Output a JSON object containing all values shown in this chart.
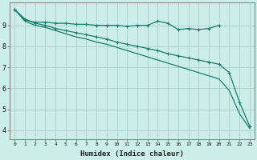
{
  "xlabel": "Humidex (Indice chaleur)",
  "bg_color": "#cceee8",
  "grid_color": "#aad4ce",
  "line_color": "#1a7a6e",
  "xlim": [
    -0.5,
    23.5
  ],
  "ylim": [
    3.6,
    10.1
  ],
  "yticks": [
    4,
    5,
    6,
    7,
    8,
    9
  ],
  "xticks": [
    0,
    1,
    2,
    3,
    4,
    5,
    6,
    7,
    8,
    9,
    10,
    11,
    12,
    13,
    14,
    15,
    16,
    17,
    18,
    19,
    20,
    21,
    22,
    23
  ],
  "line1_x": [
    0,
    1,
    2,
    3,
    4,
    5,
    6,
    7,
    8,
    9,
    10,
    11,
    12,
    13,
    14,
    15,
    16,
    17,
    18,
    19,
    20
  ],
  "line1_y": [
    9.75,
    9.25,
    9.15,
    9.15,
    9.1,
    9.1,
    9.05,
    9.05,
    9.0,
    9.0,
    9.0,
    8.95,
    9.0,
    9.0,
    9.2,
    9.1,
    8.8,
    8.85,
    8.8,
    8.85,
    9.0
  ],
  "line2_x": [
    0,
    1,
    2,
    3,
    4,
    5,
    6,
    7,
    8,
    9,
    10,
    11,
    12,
    13,
    14,
    15,
    16,
    17,
    18,
    19,
    20,
    21,
    22,
    23
  ],
  "line2_y": [
    9.75,
    9.3,
    9.1,
    9.0,
    8.85,
    8.75,
    8.65,
    8.55,
    8.45,
    8.35,
    8.2,
    8.1,
    8.0,
    7.9,
    7.8,
    7.65,
    7.55,
    7.45,
    7.35,
    7.25,
    7.15,
    6.75,
    5.35,
    4.2
  ],
  "line3_x": [
    0,
    1,
    2,
    3,
    4,
    5,
    6,
    7,
    8,
    9,
    10,
    11,
    12,
    13,
    14,
    15,
    16,
    17,
    18,
    19,
    20,
    21,
    22,
    23
  ],
  "line3_y": [
    9.75,
    9.2,
    9.0,
    8.9,
    8.75,
    8.6,
    8.45,
    8.35,
    8.2,
    8.1,
    7.95,
    7.8,
    7.65,
    7.5,
    7.35,
    7.2,
    7.05,
    6.9,
    6.75,
    6.6,
    6.45,
    5.9,
    4.8,
    4.1
  ],
  "marker_size": 2.5,
  "linewidth": 0.9
}
